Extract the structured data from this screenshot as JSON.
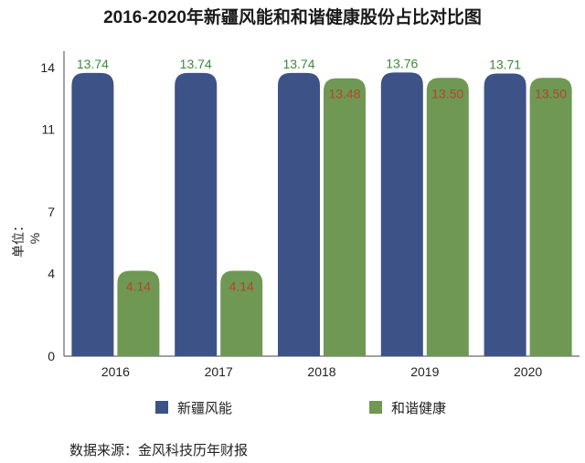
{
  "chart_data": {
    "type": "bar",
    "title": "2016-2020年新疆风能和和谐健康股份占比对比图",
    "ylabel": "单位：%",
    "xlabel": "",
    "categories": [
      "2016",
      "2017",
      "2018",
      "2019",
      "2020"
    ],
    "yticks": [
      0,
      4,
      7,
      11,
      14
    ],
    "ylim": [
      0,
      14
    ],
    "grid": false,
    "legend_position": "bottom",
    "series": [
      {
        "name": "新疆风能",
        "color": "#3d5287",
        "label_color": "#3a8a3a",
        "values": [
          13.74,
          13.74,
          13.74,
          13.76,
          13.71
        ]
      },
      {
        "name": "和谐健康",
        "color": "#6e9854",
        "label_color": "#b5462a",
        "values": [
          4.14,
          4.14,
          13.48,
          13.5,
          13.5
        ]
      }
    ],
    "value_labels": [
      [
        "13.74",
        "13.74",
        "13.74",
        "13.76",
        "13.71"
      ],
      [
        "4.14",
        "4.14",
        "13.48",
        "13.50",
        "13.50"
      ]
    ]
  },
  "source": "数据来源：金风科技历年财报"
}
